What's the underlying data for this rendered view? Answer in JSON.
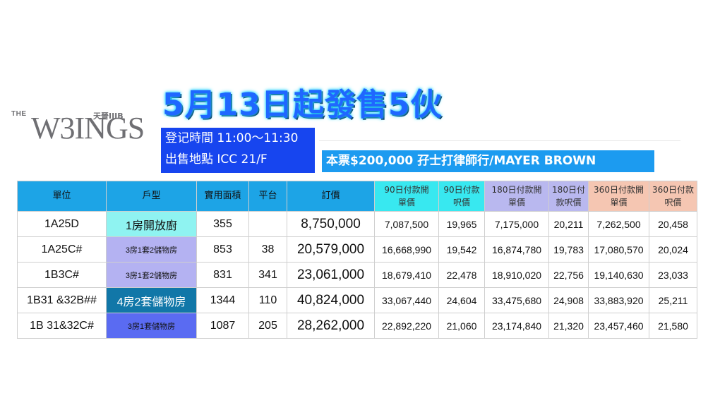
{
  "logo": {
    "the": "THE",
    "wings": "W3INGS",
    "chinese": "天晉IIIB"
  },
  "headline": "5月13日起發售5伙",
  "info": {
    "time": "登记時間 11:00～11:30",
    "place": "出售地點 ICC 21/F"
  },
  "deposit": "本票$200,000 孖士打律師行/MAYER BROWN",
  "colors": {
    "headline": "#1f67ff",
    "info_bg": "#1745ef",
    "deposit_bg": "#1c9bf0",
    "header_main": "#1da4e6",
    "header_90": "#38e8f0",
    "header_180": "#b9b8ef",
    "header_360": "#f5c6b2"
  },
  "table": {
    "headers": [
      "單位",
      "戶型",
      "實用面積",
      "平台",
      "訂價",
      "90日付款開\n單價",
      "90日付款\n呎價",
      "180日付款開\n單價",
      "180日付\n款呎價",
      "360日付款開\n單價",
      "360日付款\n呎價"
    ],
    "rows": [
      {
        "unit": "1A25D",
        "type": "1房開放廚",
        "area": "355",
        "terrace": "",
        "price": "8,750,000",
        "p90": "7,087,500",
        "s90": "19,965",
        "p180": "7,175,000",
        "s180": "20,211",
        "p360": "7,262,500",
        "s360": "20,458",
        "type_bg": "#8ff3f1",
        "type_color": "#111111"
      },
      {
        "unit": "1A25C#",
        "type": "3房1套2儲物房",
        "area": "853",
        "terrace": "38",
        "price": "20,579,000",
        "p90": "16,668,990",
        "s90": "19,542",
        "p180": "16,874,780",
        "s180": "19,783",
        "p360": "17,080,570",
        "s360": "20,024",
        "type_bg": "#b4b2f2",
        "type_color": "#111111"
      },
      {
        "unit": "1B3C#",
        "type": "3房1套2儲物房",
        "area": "831",
        "terrace": "341",
        "price": "23,061,000",
        "p90": "18,679,410",
        "s90": "22,478",
        "p180": "18,910,020",
        "s180": "22,756",
        "p360": "19,140,630",
        "s360": "23,033",
        "type_bg": "#b4b2f2",
        "type_color": "#111111"
      },
      {
        "unit": "1B31 &32B##",
        "type": "4房2套儲物房",
        "area": "1344",
        "terrace": "110",
        "price": "40,824,000",
        "p90": "33,067,440",
        "s90": "24,604",
        "p180": "33,475,680",
        "s180": "24,908",
        "p360": "33,883,920",
        "s360": "25,211",
        "type_bg": "#1177a8",
        "type_color": "#ffffff"
      },
      {
        "unit": "1B 31&32C#",
        "type": "3房1套儲物房",
        "area": "1087",
        "terrace": "205",
        "price": "28,262,000",
        "p90": "22,892,220",
        "s90": "21,060",
        "p180": "23,174,840",
        "s180": "21,320",
        "p360": "23,457,460",
        "s360": "21,580",
        "type_bg": "#5a6bf2",
        "type_color": "#111111"
      }
    ]
  }
}
